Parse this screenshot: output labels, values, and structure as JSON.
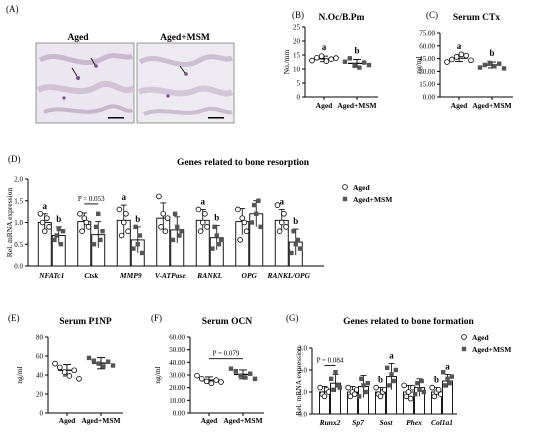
{
  "figure": {
    "panel_labels": [
      "(A)",
      "(B)",
      "(C)",
      "(D)",
      "(E)",
      "(F)",
      "(G)"
    ],
    "micrograph_labels": [
      "Aged",
      "Aged+MSM"
    ]
  },
  "chart_data": [
    {
      "id": "B",
      "type": "scatter",
      "title": "N.Oc/B.Pm",
      "ylabel": "No./mm",
      "categories": [
        "Aged",
        "Aged+MSM"
      ],
      "ylim": [
        0,
        25
      ],
      "yticks": [
        0,
        5,
        10,
        15,
        20,
        25
      ],
      "means": [
        13.6,
        12.0
      ],
      "sd": [
        1.0,
        1.4
      ],
      "points": [
        [
          13.0,
          14.0,
          14.6,
          12.8,
          13.5,
          13.9
        ],
        [
          12.6,
          13.8,
          11.2,
          10.5,
          12.3,
          11.4
        ]
      ],
      "letters": [
        "a",
        "b"
      ]
    },
    {
      "id": "C",
      "type": "scatter",
      "title": "Serum CTx",
      "ylabel": "ng/ml",
      "categories": [
        "Aged",
        "Aged+MSM"
      ],
      "ylim": [
        0,
        75
      ],
      "yticks": [
        "0.00",
        "15.00",
        "30.00",
        "45.00",
        "60.00",
        "75.00"
      ],
      "means": [
        45.5,
        37.5
      ],
      "sd": [
        4.0,
        3.5
      ],
      "points": [
        [
          41.0,
          44.0,
          47.0,
          50.0,
          48.5,
          43.0
        ],
        [
          34.5,
          37.5,
          40.0,
          36.0,
          39.0,
          33.5
        ]
      ],
      "letters": [
        "a",
        "b"
      ]
    },
    {
      "id": "D",
      "type": "bar",
      "title": "Genes related to bone resorption",
      "ylabel": "Rel. mRNA expression",
      "categories": [
        "NFATc1",
        "Ctsk",
        "MMP9",
        "V-ATPase",
        "RANKL",
        "OPG",
        "RANKL/OPG"
      ],
      "ylim": [
        0,
        2.0
      ],
      "yticks": [
        "0.0",
        "0.5",
        "1.0",
        "1.5",
        "2.0"
      ],
      "legend": [
        "Aged",
        "Aged+MSM"
      ],
      "legend_position": "top-right",
      "series": [
        {
          "name": "Aged",
          "values": [
            1.0,
            1.02,
            1.05,
            1.1,
            1.05,
            1.02,
            1.05
          ],
          "sd": [
            0.2,
            0.2,
            0.35,
            0.35,
            0.25,
            0.3,
            0.25
          ]
        },
        {
          "name": "Aged+MSM",
          "values": [
            0.7,
            0.72,
            0.6,
            0.83,
            0.65,
            1.2,
            0.55
          ],
          "sd": [
            0.2,
            0.3,
            0.3,
            0.3,
            0.28,
            0.3,
            0.3
          ]
        }
      ],
      "points": [
        [
          [
            1.2,
            1.0,
            0.8,
            1.1,
            0.9
          ],
          [
            0.6,
            0.7,
            0.85,
            0.5,
            0.8
          ]
        ],
        [
          [
            1.2,
            0.8,
            1.1,
            1.0,
            0.9
          ],
          [
            0.5,
            0.9,
            1.2,
            0.6,
            0.8
          ]
        ],
        [
          [
            1.3,
            0.7,
            1.0,
            1.2,
            0.8
          ],
          [
            0.4,
            0.9,
            0.5,
            0.7,
            0.3
          ]
        ],
        [
          [
            1.6,
            0.9,
            1.2,
            0.8,
            1.1
          ],
          [
            0.6,
            1.2,
            0.9,
            0.7,
            0.8
          ]
        ],
        [
          [
            1.3,
            0.8,
            1.0,
            1.2,
            0.9
          ],
          [
            0.4,
            0.9,
            0.7,
            0.5,
            0.6
          ]
        ],
        [
          [
            1.3,
            0.6,
            1.1,
            1.0,
            0.8
          ],
          [
            1.0,
            1.4,
            1.2,
            1.5,
            0.9
          ]
        ],
        [
          [
            1.4,
            0.8,
            1.0,
            1.2,
            0.9
          ],
          [
            0.3,
            0.8,
            0.5,
            0.6,
            0.4
          ]
        ]
      ],
      "letters": [
        [
          "a",
          "b"
        ],
        [
          "",
          ""
        ],
        [
          "a",
          "b"
        ],
        [
          "",
          ""
        ],
        [
          "a",
          "b"
        ],
        [
          "",
          ""
        ],
        [
          "a",
          "b"
        ]
      ],
      "brackets": [
        {
          "category": 1,
          "label": "P = 0.053"
        }
      ]
    },
    {
      "id": "E",
      "type": "scatter",
      "title": "Serum P1NP",
      "ylabel": "ng/ml",
      "categories": [
        "Aged",
        "Aged+MSM"
      ],
      "ylim": [
        0,
        80
      ],
      "yticks": [
        0,
        20,
        40,
        60,
        80
      ],
      "means": [
        45.0,
        52.5
      ],
      "sd": [
        6.0,
        6.0
      ],
      "points": [
        [
          52.0,
          48.0,
          43.0,
          39.0,
          45.0,
          36.0
        ],
        [
          58.0,
          55.0,
          52.0,
          49.0,
          54.0,
          50.0
        ]
      ],
      "letters": [
        "",
        ""
      ]
    },
    {
      "id": "F",
      "type": "scatter",
      "title": "Serum OCN",
      "ylabel": "ng/ml",
      "categories": [
        "Aged",
        "Aged+MSM"
      ],
      "ylim": [
        0,
        60
      ],
      "yticks": [
        "0.00",
        "10.00",
        "20.00",
        "30.00",
        "40.00",
        "50.00",
        "60.00"
      ],
      "means": [
        26.0,
        30.5
      ],
      "sd": [
        2.5,
        3.5
      ],
      "points": [
        [
          29.5,
          27.0,
          25.0,
          23.5,
          26.0,
          24.5
        ],
        [
          35.0,
          33.0,
          29.5,
          28.0,
          31.0,
          27.0
        ]
      ],
      "letters": [
        "",
        ""
      ],
      "brackets": [
        {
          "label": "P = 0.079"
        }
      ]
    },
    {
      "id": "G",
      "type": "bar",
      "title": "Genes related to bone formation",
      "ylabel": "Rel. mRNA expression",
      "categories": [
        "Runx2",
        "Sp7",
        "Sost",
        "Phex",
        "Col1a1"
      ],
      "ylim": [
        0,
        3
      ],
      "yticks": [
        "0.0",
        "1.0",
        "2.0",
        "3.0"
      ],
      "legend": [
        "Aged",
        "Aged+MSM"
      ],
      "legend_position": "top-right",
      "series": [
        {
          "name": "Aged",
          "values": [
            1.0,
            1.0,
            1.0,
            1.0,
            1.0
          ],
          "sd": [
            0.25,
            0.25,
            0.2,
            0.3,
            0.2
          ]
        },
        {
          "name": "Aged+MSM",
          "values": [
            1.4,
            1.25,
            1.7,
            1.2,
            1.5
          ],
          "sd": [
            0.4,
            0.5,
            0.6,
            0.4,
            0.3
          ]
        }
      ],
      "points": [
        [
          [
            1.2,
            0.9,
            0.8,
            1.1,
            1.0
          ],
          [
            1.6,
            1.1,
            1.9,
            1.3,
            1.2
          ]
        ],
        [
          [
            1.2,
            0.8,
            1.0,
            0.9,
            1.1
          ],
          [
            0.8,
            1.6,
            1.3,
            1.0,
            1.4
          ]
        ],
        [
          [
            1.2,
            0.9,
            0.8,
            1.0,
            1.1
          ],
          [
            2.1,
            1.3,
            1.8,
            1.5,
            2.0
          ]
        ],
        [
          [
            1.3,
            0.8,
            1.0,
            0.7,
            1.2
          ],
          [
            0.9,
            1.4,
            1.1,
            1.5,
            1.0
          ]
        ],
        [
          [
            1.2,
            0.8,
            1.0,
            1.1,
            0.9
          ],
          [
            1.9,
            1.3,
            1.6,
            1.4,
            1.7
          ]
        ]
      ],
      "letters": [
        [
          "",
          ""
        ],
        [
          "",
          ""
        ],
        [
          "b",
          "a"
        ],
        [
          "",
          ""
        ],
        [
          "b",
          "a"
        ]
      ],
      "brackets": [
        {
          "category": 0,
          "label": "P = 0.084"
        }
      ]
    }
  ]
}
